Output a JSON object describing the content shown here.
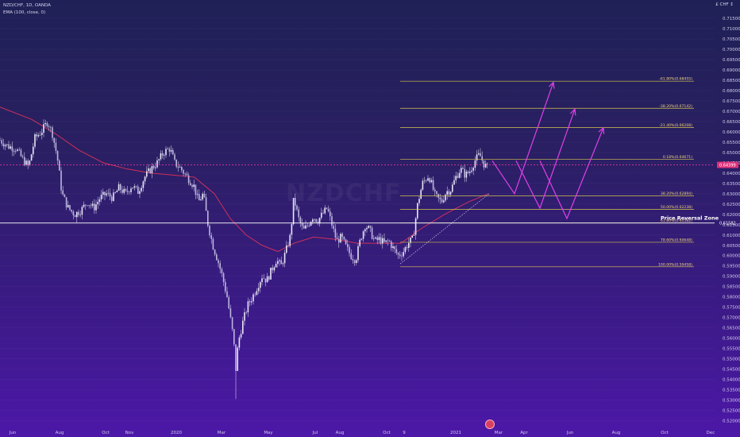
{
  "header": {
    "symbol_line": "NZD/CHF, 1D, OANDA",
    "indicator_line": "EMA (100, close, 0)"
  },
  "axis": {
    "currency_label": "£ CHF ↕"
  },
  "watermark": "NZDCHF",
  "colors": {
    "candle": "#e9e6f7",
    "ema": "#d0305c",
    "fib_line": "#d7c44f",
    "fib_label": "#efd37a",
    "projection": "#e040e8",
    "prz_line": "#ffffff",
    "price_line": "#ff3aa8",
    "grid": "rgba(255,255,255,0.05)"
  },
  "chart_data": {
    "type": "candlestick",
    "ylim": [
      0.5175,
      0.7185
    ],
    "y_ticks": [
      "0.71500",
      "0.71000",
      "0.70500",
      "0.70000",
      "0.69500",
      "0.69000",
      "0.68500",
      "0.68000",
      "0.67500",
      "0.67000",
      "0.66500",
      "0.66000",
      "0.65500",
      "0.65000",
      "0.64500",
      "0.64000",
      "0.63500",
      "0.63000",
      "0.62500",
      "0.62000",
      "0.61500",
      "0.61000",
      "0.60500",
      "0.60000",
      "0.59500",
      "0.59000",
      "0.58500",
      "0.58000",
      "0.57500",
      "0.57000",
      "0.56500",
      "0.56000",
      "0.55500",
      "0.55000",
      "0.54500",
      "0.54000",
      "0.53500",
      "0.53000",
      "0.52500",
      "0.52000"
    ],
    "x_ticks": [
      "Jun",
      "Aug",
      "Oct",
      "Nov",
      "2020",
      "Mar",
      "May",
      "Jul",
      "Aug",
      "Oct",
      "9",
      "2021",
      "Mar",
      "Apr",
      "Jun",
      "Aug",
      "Oct",
      "Dec"
    ],
    "current_price": "0.64399",
    "prz_price": "0.61582",
    "prz_label": "Price Reversal Zone",
    "price_path": [
      [
        0,
        0.656
      ],
      [
        10,
        0.653
      ],
      [
        20,
        0.652
      ],
      [
        28,
        0.647
      ],
      [
        36,
        0.643
      ],
      [
        44,
        0.657
      ],
      [
        52,
        0.66
      ],
      [
        60,
        0.665
      ],
      [
        66,
        0.659
      ],
      [
        72,
        0.648
      ],
      [
        78,
        0.63
      ],
      [
        86,
        0.623
      ],
      [
        94,
        0.62
      ],
      [
        102,
        0.622
      ],
      [
        110,
        0.626
      ],
      [
        118,
        0.623
      ],
      [
        126,
        0.628
      ],
      [
        134,
        0.63
      ],
      [
        142,
        0.628
      ],
      [
        150,
        0.633
      ],
      [
        158,
        0.63
      ],
      [
        166,
        0.634
      ],
      [
        174,
        0.631
      ],
      [
        182,
        0.638
      ],
      [
        190,
        0.642
      ],
      [
        198,
        0.645
      ],
      [
        206,
        0.65
      ],
      [
        214,
        0.652
      ],
      [
        220,
        0.645
      ],
      [
        228,
        0.642
      ],
      [
        236,
        0.638
      ],
      [
        244,
        0.634
      ],
      [
        250,
        0.626
      ],
      [
        256,
        0.63
      ],
      [
        262,
        0.615
      ],
      [
        268,
        0.605
      ],
      [
        274,
        0.598
      ],
      [
        280,
        0.59
      ],
      [
        286,
        0.58
      ],
      [
        290,
        0.57
      ],
      [
        294,
        0.56
      ],
      [
        297,
        0.545
      ],
      [
        300,
        0.558
      ],
      [
        306,
        0.568
      ],
      [
        312,
        0.576
      ],
      [
        318,
        0.58
      ],
      [
        324,
        0.585
      ],
      [
        330,
        0.59
      ],
      [
        336,
        0.588
      ],
      [
        342,
        0.593
      ],
      [
        348,
        0.598
      ],
      [
        354,
        0.595
      ],
      [
        360,
        0.602
      ],
      [
        366,
        0.61
      ],
      [
        370,
        0.628
      ],
      [
        376,
        0.618
      ],
      [
        382,
        0.612
      ],
      [
        388,
        0.615
      ],
      [
        394,
        0.619
      ],
      [
        400,
        0.617
      ],
      [
        406,
        0.62
      ],
      [
        412,
        0.623
      ],
      [
        418,
        0.615
      ],
      [
        424,
        0.607
      ],
      [
        430,
        0.609
      ],
      [
        436,
        0.604
      ],
      [
        442,
        0.6
      ],
      [
        448,
        0.598
      ],
      [
        454,
        0.608
      ],
      [
        460,
        0.615
      ],
      [
        466,
        0.612
      ],
      [
        472,
        0.607
      ],
      [
        478,
        0.608
      ],
      [
        484,
        0.606
      ],
      [
        490,
        0.607
      ],
      [
        496,
        0.603
      ],
      [
        502,
        0.6
      ],
      [
        508,
        0.602
      ],
      [
        514,
        0.606
      ],
      [
        520,
        0.608
      ],
      [
        526,
        0.625
      ],
      [
        532,
        0.635
      ],
      [
        540,
        0.639
      ],
      [
        548,
        0.629
      ],
      [
        556,
        0.626
      ],
      [
        562,
        0.631
      ],
      [
        568,
        0.632
      ],
      [
        574,
        0.638
      ],
      [
        580,
        0.642
      ],
      [
        586,
        0.639
      ],
      [
        592,
        0.641
      ],
      [
        598,
        0.646
      ],
      [
        604,
        0.649
      ],
      [
        610,
        0.644
      ],
      [
        616,
        0.642
      ]
    ],
    "ema_path": [
      [
        0,
        0.672
      ],
      [
        40,
        0.666
      ],
      [
        70,
        0.659
      ],
      [
        100,
        0.651
      ],
      [
        130,
        0.645
      ],
      [
        160,
        0.642
      ],
      [
        190,
        0.64
      ],
      [
        220,
        0.639
      ],
      [
        245,
        0.638
      ],
      [
        270,
        0.63
      ],
      [
        290,
        0.618
      ],
      [
        310,
        0.61
      ],
      [
        330,
        0.605
      ],
      [
        350,
        0.602
      ],
      [
        370,
        0.606
      ],
      [
        395,
        0.609
      ],
      [
        420,
        0.608
      ],
      [
        450,
        0.606
      ],
      [
        480,
        0.606
      ],
      [
        505,
        0.606
      ],
      [
        530,
        0.613
      ],
      [
        560,
        0.62
      ],
      [
        590,
        0.626
      ],
      [
        615,
        0.63
      ]
    ],
    "fib_levels": [
      {
        "label": "-61.80%(0.68455)",
        "price": 0.68455
      },
      {
        "label": "-38.20%(0.67142)",
        "price": 0.67142
      },
      {
        "label": "-21.40%(0.66208)",
        "price": 0.66208
      },
      {
        "label": "0.18%(0.64671)",
        "price": 0.64671
      },
      {
        "label": "38.20%(0.62894)",
        "price": 0.62894
      },
      {
        "label": "50.00%(0.62238)",
        "price": 0.62238
      },
      {
        "label": "61.80%(0.61582)",
        "price": 0.61582
      },
      {
        "label": "78.60%(0.60648)",
        "price": 0.60648
      },
      {
        "label": "100.00%(0.59458)",
        "price": 0.59458
      }
    ],
    "projections": [
      [
        [
          620,
          0.646
        ],
        [
          648,
          0.63
        ],
        [
          697,
          0.684
        ]
      ],
      [
        [
          650,
          0.646
        ],
        [
          680,
          0.623
        ],
        [
          724,
          0.671
        ]
      ],
      [
        [
          680,
          0.646
        ],
        [
          714,
          0.618
        ],
        [
          760,
          0.662
        ]
      ]
    ],
    "fib_anchor": [
      [
        504,
        0.596
      ],
      [
        616,
        0.63
      ]
    ]
  }
}
